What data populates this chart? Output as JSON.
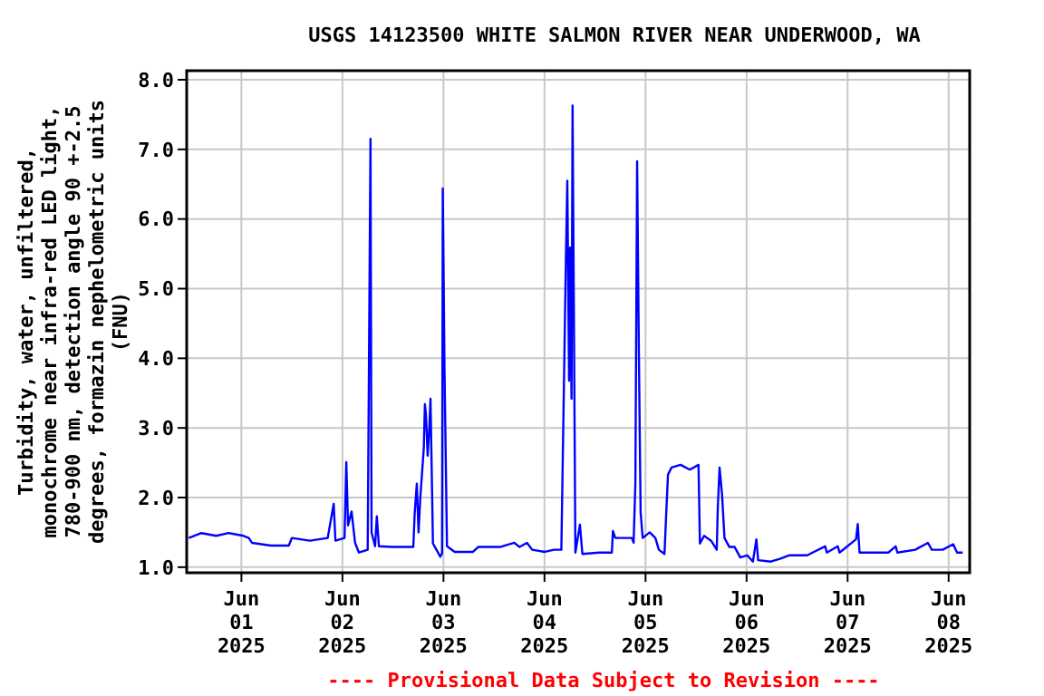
{
  "chart_data": {
    "type": "line",
    "title": "USGS 14123500 WHITE SALMON RIVER NEAR UNDERWOOD, WA",
    "ylabel": "Turbidity, water, unfiltered,\nmonochrome near infra-red LED light,\n780-900 nm, detection angle 90 +-2.5\ndegrees, formazin nephelometric units\n(FNU)",
    "annotations": [
      "---- Provisional Data Subject to Revision ----"
    ],
    "grid": true,
    "xlim": [
      "2025-05-31T11:00",
      "2025-06-08T05:00"
    ],
    "ylim": [
      0.92,
      8.13
    ],
    "xticks": [
      {
        "value": "2025-06-01",
        "label": "Jun\n01\n2025"
      },
      {
        "value": "2025-06-02",
        "label": "Jun\n02\n2025"
      },
      {
        "value": "2025-06-03",
        "label": "Jun\n03\n2025"
      },
      {
        "value": "2025-06-04",
        "label": "Jun\n04\n2025"
      },
      {
        "value": "2025-06-05",
        "label": "Jun\n05\n2025"
      },
      {
        "value": "2025-06-06",
        "label": "Jun\n06\n2025"
      },
      {
        "value": "2025-06-07",
        "label": "Jun\n07\n2025"
      },
      {
        "value": "2025-06-08",
        "label": "Jun\n08\n2025"
      }
    ],
    "yticks": [
      {
        "value": 1,
        "label": "1.0"
      },
      {
        "value": 2,
        "label": "2.0"
      },
      {
        "value": 3,
        "label": "3.0"
      },
      {
        "value": 4,
        "label": "4.0"
      },
      {
        "value": 5,
        "label": "5.0"
      },
      {
        "value": 6,
        "label": "6.0"
      },
      {
        "value": 7,
        "label": "7.0"
      },
      {
        "value": 8,
        "label": "8.0"
      }
    ],
    "series": [
      {
        "color": "#0000ff",
        "x": [
          "2025-05-31T11:30",
          "2025-05-31T14:30",
          "2025-05-31T18:00",
          "2025-05-31T21:00",
          "2025-06-01T00:30",
          "2025-06-01T01:45",
          "2025-06-01T02:30",
          "2025-06-01T07:00",
          "2025-06-01T11:15",
          "2025-06-01T12:00",
          "2025-06-01T16:15",
          "2025-06-01T20:30",
          "2025-06-01T21:55",
          "2025-06-01T22:20",
          "2025-06-02T00:30",
          "2025-06-02T00:55",
          "2025-06-02T01:20",
          "2025-06-02T02:10",
          "2025-06-02T03:00",
          "2025-06-02T03:55",
          "2025-06-02T06:00",
          "2025-06-02T06:20",
          "2025-06-02T06:40",
          "2025-06-02T06:55",
          "2025-06-02T07:45",
          "2025-06-02T08:10",
          "2025-06-02T08:40",
          "2025-06-02T11:40",
          "2025-06-02T16:50",
          "2025-06-02T17:10",
          "2025-06-02T17:40",
          "2025-06-02T18:05",
          "2025-06-02T18:30",
          "2025-06-02T19:20",
          "2025-06-02T19:35",
          "2025-06-02T19:50",
          "2025-06-02T20:15",
          "2025-06-02T20:40",
          "2025-06-02T20:55",
          "2025-06-02T21:30",
          "2025-06-02T22:20",
          "2025-06-02T23:15",
          "2025-06-02T23:40",
          "2025-06-02T23:50",
          "2025-06-03T00:15",
          "2025-06-03T00:50",
          "2025-06-03T02:40",
          "2025-06-03T07:00",
          "2025-06-03T08:15",
          "2025-06-03T13:25",
          "2025-06-03T16:50",
          "2025-06-03T18:05",
          "2025-06-03T19:50",
          "2025-06-03T21:05",
          "2025-06-04T00:05",
          "2025-06-04T02:15",
          "2025-06-04T04:00",
          "2025-06-04T05:05",
          "2025-06-04T05:25",
          "2025-06-04T05:50",
          "2025-06-04T06:05",
          "2025-06-04T06:25",
          "2025-06-04T06:40",
          "2025-06-04T07:00",
          "2025-06-04T07:20",
          "2025-06-04T08:25",
          "2025-06-04T09:00",
          "2025-06-04T13:00",
          "2025-06-04T16:00",
          "2025-06-04T16:15",
          "2025-06-04T16:50",
          "2025-06-04T20:45",
          "2025-06-04T21:10",
          "2025-06-04T21:35",
          "2025-06-04T22:00",
          "2025-06-04T22:25",
          "2025-06-04T22:50",
          "2025-06-04T23:20",
          "2025-06-05T01:00",
          "2025-06-05T02:20",
          "2025-06-05T03:10",
          "2025-06-05T04:30",
          "2025-06-05T04:55",
          "2025-06-05T05:20",
          "2025-06-05T06:10",
          "2025-06-05T08:20",
          "2025-06-05T10:30",
          "2025-06-05T12:35",
          "2025-06-05T12:55",
          "2025-06-05T13:55",
          "2025-06-05T15:35",
          "2025-06-05T16:55",
          "2025-06-05T17:10",
          "2025-06-05T17:35",
          "2025-06-05T18:10",
          "2025-06-05T18:45",
          "2025-06-05T19:55",
          "2025-06-05T21:10",
          "2025-06-05T22:30",
          "2025-06-06T00:10",
          "2025-06-06T01:30",
          "2025-06-06T02:20",
          "2025-06-06T02:45",
          "2025-06-06T05:45",
          "2025-06-06T07:55",
          "2025-06-06T10:05",
          "2025-06-06T14:25",
          "2025-06-06T15:40",
          "2025-06-06T18:40",
          "2025-06-06T19:05",
          "2025-06-06T21:40",
          "2025-06-06T22:05",
          "2025-06-07T02:00",
          "2025-06-07T02:25",
          "2025-06-07T02:50",
          "2025-06-07T09:40",
          "2025-06-07T11:25",
          "2025-06-07T11:50",
          "2025-06-07T16:05",
          "2025-06-07T19:05",
          "2025-06-07T20:00",
          "2025-06-07T22:35",
          "2025-06-08T01:05",
          "2025-06-08T02:00",
          "2025-06-08T03:20"
        ],
        "values": [
          1.42,
          1.49,
          1.45,
          1.49,
          1.45,
          1.42,
          1.35,
          1.31,
          1.31,
          1.42,
          1.38,
          1.42,
          1.91,
          1.38,
          1.42,
          2.51,
          1.6,
          1.8,
          1.35,
          1.21,
          1.25,
          4.23,
          7.15,
          1.5,
          1.3,
          1.73,
          1.3,
          1.29,
          1.29,
          1.78,
          2.2,
          1.5,
          2.0,
          2.72,
          3.34,
          3.2,
          2.6,
          3.03,
          3.42,
          1.34,
          1.25,
          1.15,
          1.2,
          6.44,
          3.81,
          1.3,
          1.22,
          1.22,
          1.29,
          1.29,
          1.35,
          1.29,
          1.35,
          1.25,
          1.22,
          1.25,
          1.25,
          5.43,
          6.55,
          3.68,
          5.59,
          3.42,
          7.63,
          4.46,
          1.21,
          1.61,
          1.19,
          1.21,
          1.21,
          1.52,
          1.42,
          1.42,
          1.35,
          2.2,
          6.83,
          4.08,
          1.78,
          1.42,
          1.5,
          1.42,
          1.25,
          1.19,
          1.78,
          2.33,
          2.43,
          2.47,
          2.4,
          2.47,
          1.34,
          1.45,
          1.38,
          1.25,
          1.86,
          2.43,
          2.05,
          1.42,
          1.29,
          1.29,
          1.14,
          1.17,
          1.08,
          1.4,
          1.1,
          1.08,
          1.12,
          1.17,
          1.17,
          1.21,
          1.3,
          1.21,
          1.3,
          1.21,
          1.4,
          1.62,
          1.21,
          1.21,
          1.3,
          1.21,
          1.25,
          1.35,
          1.25,
          1.25,
          1.33,
          1.21,
          1.21
        ]
      }
    ]
  }
}
